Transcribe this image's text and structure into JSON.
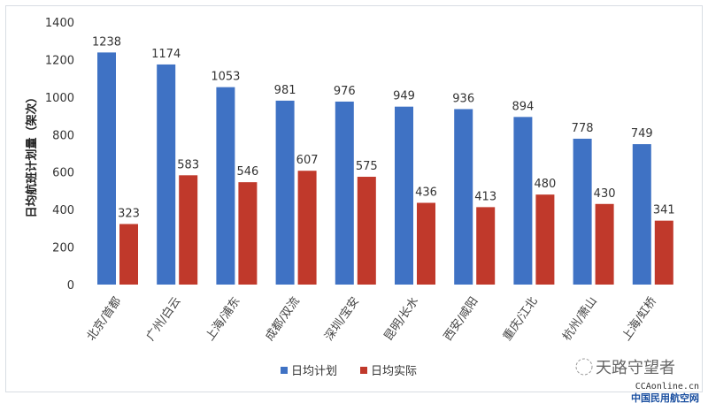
{
  "chart_data": {
    "type": "bar",
    "title": "",
    "xlabel": "",
    "ylabel": "日均航班计划量（架次）",
    "ylim": [
      0,
      1400
    ],
    "yticks": [
      0,
      200,
      400,
      600,
      800,
      1000,
      1200,
      1400
    ],
    "grid": false,
    "legend_position": "bottom",
    "categories": [
      "北京/首都",
      "广州/白云",
      "上海/浦东",
      "成都/双流",
      "深圳/宝安",
      "昆明/长水",
      "西安/咸阳",
      "重庆/江北",
      "杭州/萧山",
      "上海/虹桥"
    ],
    "series": [
      {
        "name": "日均计划",
        "color": "#3f72c4",
        "values": [
          1238,
          1174,
          1053,
          981,
          976,
          949,
          936,
          894,
          778,
          749
        ]
      },
      {
        "name": "日均实际",
        "color": "#c0392b",
        "values": [
          323,
          583,
          546,
          607,
          575,
          436,
          413,
          480,
          430,
          341
        ]
      }
    ]
  },
  "watermark": {
    "account": "天路守望者",
    "site": "CCAonline.cn",
    "site_name": "中国民用航空网"
  }
}
